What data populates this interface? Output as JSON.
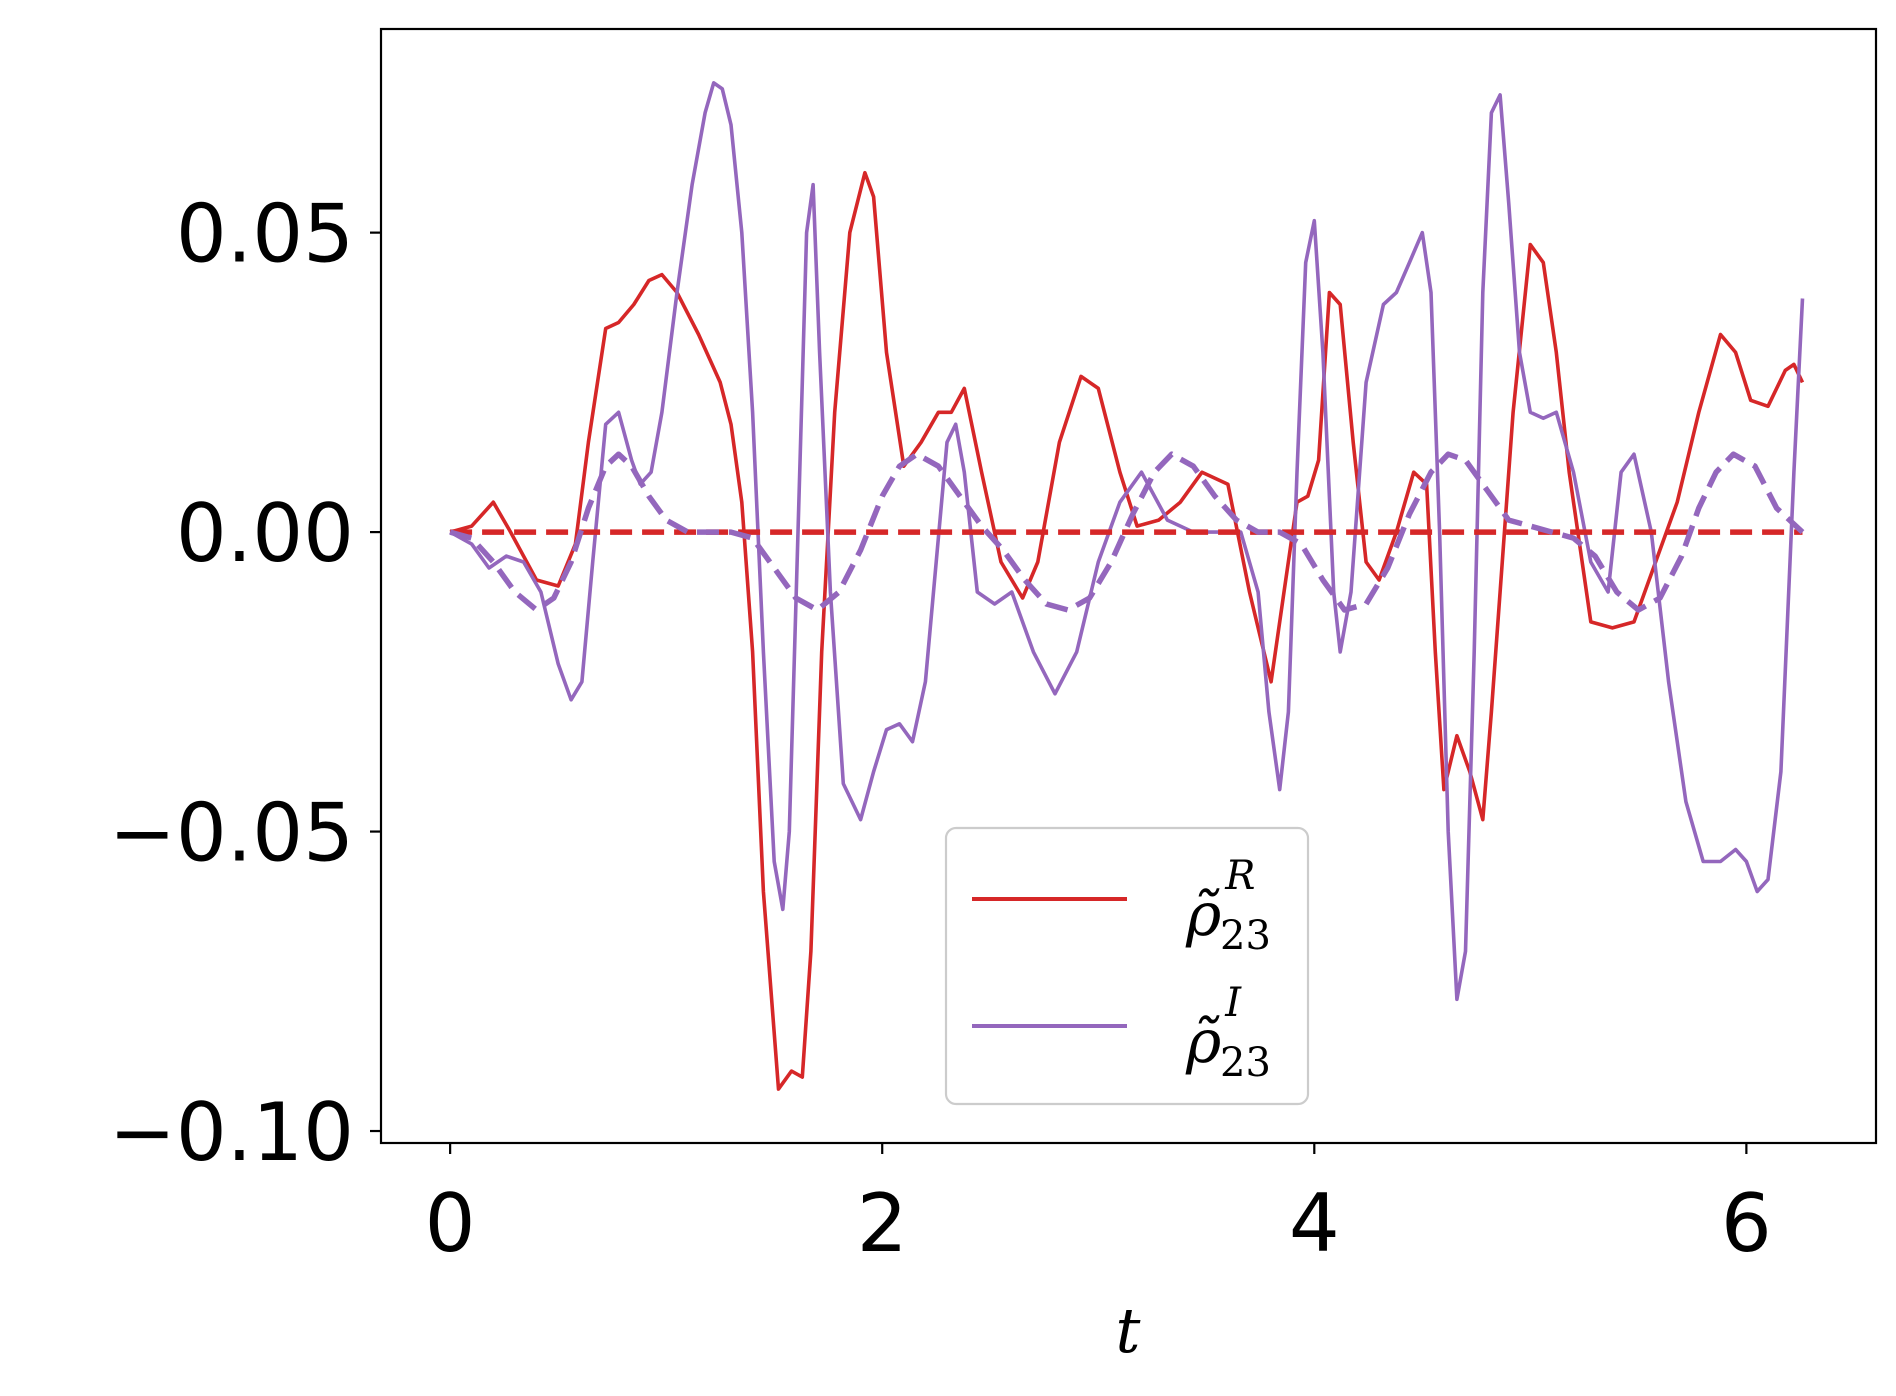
{
  "chart_data": {
    "type": "line",
    "xlabel": "t",
    "ylabel": "",
    "xlim": [
      -0.32,
      6.6
    ],
    "ylim": [
      -0.102,
      0.084
    ],
    "x_ticks": [
      0,
      2,
      4,
      6
    ],
    "x_tick_labels": [
      "0",
      "2",
      "4",
      "6"
    ],
    "y_ticks": [
      -0.1,
      -0.05,
      0.0,
      0.05
    ],
    "y_tick_labels": [
      "−0.10",
      "−0.05",
      "0.00",
      "0.05"
    ],
    "grid": false,
    "legend_position": "lower-center",
    "legend": [
      {
        "base": "ρ̃",
        "sup": "R",
        "sub": "23",
        "color": "#d62728"
      },
      {
        "base": "ρ̃",
        "sup": "I",
        "sub": "23",
        "color": "#9467bd"
      }
    ],
    "series": [
      {
        "key": "rho23R",
        "style": "solid",
        "color": "#d62728",
        "x": [
          0.0,
          0.1,
          0.2,
          0.28,
          0.4,
          0.5,
          0.58,
          0.64,
          0.72,
          0.78,
          0.85,
          0.92,
          0.98,
          1.05,
          1.15,
          1.25,
          1.3,
          1.35,
          1.4,
          1.45,
          1.52,
          1.58,
          1.63,
          1.67,
          1.72,
          1.78,
          1.85,
          1.92,
          1.96,
          2.02,
          2.1,
          2.18,
          2.26,
          2.32,
          2.38,
          2.46,
          2.55,
          2.65,
          2.72,
          2.82,
          2.92,
          3.0,
          3.1,
          3.18,
          3.28,
          3.38,
          3.48,
          3.6,
          3.7,
          3.8,
          3.86,
          3.92,
          3.97,
          4.02,
          4.07,
          4.12,
          4.18,
          4.24,
          4.3,
          4.38,
          4.46,
          4.52,
          4.56,
          4.6,
          4.66,
          4.72,
          4.78,
          4.82,
          4.86,
          4.92,
          5.0,
          5.06,
          5.12,
          5.18,
          5.28,
          5.38,
          5.48,
          5.58,
          5.68,
          5.78,
          5.88,
          5.95,
          6.02,
          6.1,
          6.18,
          6.22,
          6.26
        ],
        "y": [
          0.0,
          0.001,
          0.005,
          0.0,
          -0.008,
          -0.009,
          -0.002,
          0.015,
          0.034,
          0.035,
          0.038,
          0.042,
          0.043,
          0.04,
          0.033,
          0.025,
          0.018,
          0.005,
          -0.02,
          -0.06,
          -0.093,
          -0.09,
          -0.091,
          -0.07,
          -0.02,
          0.02,
          0.05,
          0.06,
          0.056,
          0.03,
          0.011,
          0.015,
          0.02,
          0.02,
          0.024,
          0.01,
          -0.005,
          -0.011,
          -0.005,
          0.015,
          0.026,
          0.024,
          0.01,
          0.001,
          0.002,
          0.005,
          0.01,
          0.008,
          -0.01,
          -0.025,
          -0.01,
          0.005,
          0.006,
          0.012,
          0.04,
          0.038,
          0.015,
          -0.005,
          -0.008,
          0.0,
          0.01,
          0.008,
          -0.02,
          -0.043,
          -0.034,
          -0.04,
          -0.048,
          -0.03,
          -0.01,
          0.02,
          0.048,
          0.045,
          0.03,
          0.01,
          -0.015,
          -0.016,
          -0.015,
          -0.005,
          0.005,
          0.02,
          0.033,
          0.03,
          0.022,
          0.021,
          0.027,
          0.028,
          0.025
        ]
      },
      {
        "key": "rho23I",
        "style": "solid",
        "color": "#9467bd",
        "x": [
          0.0,
          0.1,
          0.18,
          0.26,
          0.34,
          0.42,
          0.5,
          0.56,
          0.61,
          0.66,
          0.72,
          0.78,
          0.84,
          0.88,
          0.93,
          0.98,
          1.05,
          1.12,
          1.18,
          1.22,
          1.26,
          1.3,
          1.35,
          1.4,
          1.45,
          1.5,
          1.54,
          1.57,
          1.61,
          1.65,
          1.68,
          1.71,
          1.76,
          1.82,
          1.9,
          1.96,
          2.02,
          2.08,
          2.14,
          2.2,
          2.25,
          2.3,
          2.34,
          2.38,
          2.44,
          2.52,
          2.6,
          2.7,
          2.8,
          2.9,
          3.0,
          3.1,
          3.2,
          3.32,
          3.44,
          3.56,
          3.66,
          3.74,
          3.79,
          3.84,
          3.88,
          3.92,
          3.96,
          4.0,
          4.04,
          4.09,
          4.12,
          4.17,
          4.24,
          4.32,
          4.38,
          4.44,
          4.5,
          4.54,
          4.58,
          4.62,
          4.66,
          4.7,
          4.74,
          4.78,
          4.82,
          4.86,
          4.9,
          4.95,
          5.0,
          5.06,
          5.12,
          5.2,
          5.28,
          5.36,
          5.42,
          5.48,
          5.56,
          5.64,
          5.72,
          5.8,
          5.88,
          5.95,
          6.0,
          6.05,
          6.1,
          6.16,
          6.22,
          6.26
        ],
        "y": [
          0.0,
          -0.002,
          -0.006,
          -0.004,
          -0.005,
          -0.01,
          -0.022,
          -0.028,
          -0.025,
          -0.005,
          0.018,
          0.02,
          0.012,
          0.008,
          0.01,
          0.02,
          0.04,
          0.058,
          0.07,
          0.075,
          0.074,
          0.068,
          0.05,
          0.02,
          -0.02,
          -0.055,
          -0.063,
          -0.05,
          0.0,
          0.05,
          0.058,
          0.03,
          -0.01,
          -0.042,
          -0.048,
          -0.04,
          -0.033,
          -0.032,
          -0.035,
          -0.025,
          -0.005,
          0.015,
          0.018,
          0.01,
          -0.01,
          -0.012,
          -0.01,
          -0.02,
          -0.027,
          -0.02,
          -0.005,
          0.005,
          0.01,
          0.002,
          0.0,
          0.0,
          0.0,
          -0.01,
          -0.03,
          -0.043,
          -0.03,
          0.01,
          0.045,
          0.052,
          0.03,
          -0.01,
          -0.02,
          -0.01,
          0.025,
          0.038,
          0.04,
          0.045,
          0.05,
          0.04,
          0.0,
          -0.05,
          -0.078,
          -0.07,
          -0.02,
          0.04,
          0.07,
          0.073,
          0.055,
          0.03,
          0.02,
          0.019,
          0.02,
          0.01,
          -0.005,
          -0.01,
          0.01,
          0.013,
          0.0,
          -0.025,
          -0.045,
          -0.055,
          -0.055,
          -0.053,
          -0.055,
          -0.06,
          -0.058,
          -0.04,
          0.01,
          0.039
        ]
      },
      {
        "key": "rho23R-dashed",
        "style": "dashed",
        "color": "#d62728",
        "x": [
          0.0,
          6.26
        ],
        "y": [
          0.0,
          0.0
        ]
      },
      {
        "key": "rho23I-dashed",
        "style": "dashed",
        "color": "#9467bd",
        "x": [
          0.0,
          0.1,
          0.2,
          0.3,
          0.4,
          0.48,
          0.56,
          0.64,
          0.72,
          0.78,
          0.84,
          0.92,
          1.0,
          1.1,
          1.2,
          1.3,
          1.4,
          1.5,
          1.6,
          1.7,
          1.8,
          1.9,
          2.0,
          2.08,
          2.16,
          2.26,
          2.36,
          2.46,
          2.56,
          2.66,
          2.76,
          2.86,
          2.96,
          3.06,
          3.16,
          3.26,
          3.34,
          3.44,
          3.54,
          3.64,
          3.74,
          3.84,
          3.94,
          4.04,
          4.14,
          4.24,
          4.34,
          4.44,
          4.54,
          4.62,
          4.7,
          4.8,
          4.9,
          5.0,
          5.1,
          5.2,
          5.3,
          5.4,
          5.5,
          5.6,
          5.7,
          5.78,
          5.86,
          5.94,
          6.04,
          6.14,
          6.26
        ],
        "y": [
          0.0,
          -0.001,
          -0.005,
          -0.01,
          -0.013,
          -0.011,
          -0.005,
          0.004,
          0.011,
          0.013,
          0.011,
          0.006,
          0.002,
          0.0,
          0.0,
          0.0,
          -0.001,
          -0.006,
          -0.011,
          -0.013,
          -0.01,
          -0.003,
          0.006,
          0.011,
          0.013,
          0.011,
          0.006,
          0.001,
          -0.003,
          -0.008,
          -0.012,
          -0.013,
          -0.011,
          -0.005,
          0.003,
          0.01,
          0.013,
          0.011,
          0.006,
          0.002,
          0.0,
          0.0,
          -0.002,
          -0.008,
          -0.013,
          -0.012,
          -0.006,
          0.003,
          0.01,
          0.013,
          0.012,
          0.007,
          0.002,
          0.001,
          0.0,
          -0.001,
          -0.004,
          -0.01,
          -0.013,
          -0.011,
          -0.004,
          0.004,
          0.01,
          0.013,
          0.011,
          0.004,
          0.0
        ]
      }
    ]
  }
}
